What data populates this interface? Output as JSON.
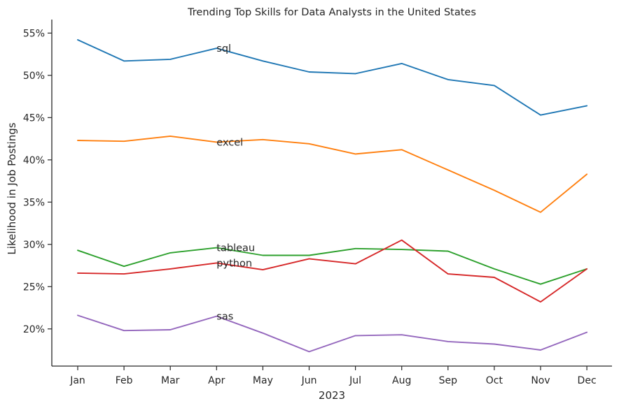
{
  "chart_data": {
    "type": "line",
    "title": "Trending Top Skills for Data Analysts in the United States",
    "xlabel": "2023",
    "ylabel": "Likelihood in Job Postings",
    "categories": [
      "Jan",
      "Feb",
      "Mar",
      "Apr",
      "May",
      "Jun",
      "Jul",
      "Aug",
      "Sep",
      "Oct",
      "Nov",
      "Dec"
    ],
    "y_ticks": [
      20,
      25,
      30,
      35,
      40,
      45,
      50,
      55
    ],
    "y_tick_labels": [
      "20%",
      "25%",
      "30%",
      "35%",
      "40%",
      "45%",
      "50%",
      "55%"
    ],
    "ylim": [
      15.6,
      56.6
    ],
    "grid": false,
    "legend": "none (series labeled inline near Apr)",
    "label_position": "Apr",
    "series": [
      {
        "name": "sql",
        "color": "#1f77b4",
        "values": [
          54.2,
          51.7,
          51.9,
          53.2,
          51.7,
          50.4,
          50.2,
          51.4,
          49.5,
          48.8,
          45.3,
          46.4
        ]
      },
      {
        "name": "excel",
        "color": "#ff7f0e",
        "values": [
          42.3,
          42.2,
          42.8,
          42.1,
          42.4,
          41.9,
          40.7,
          41.2,
          38.8,
          36.4,
          33.8,
          38.3
        ]
      },
      {
        "name": "tableau",
        "color": "#2ca02c",
        "values": [
          29.3,
          27.4,
          29.0,
          29.6,
          28.7,
          28.7,
          29.5,
          29.4,
          29.2,
          27.1,
          25.3,
          27.1
        ]
      },
      {
        "name": "python",
        "color": "#d62728",
        "values": [
          26.6,
          26.5,
          27.1,
          27.8,
          27.0,
          28.3,
          27.7,
          30.5,
          26.5,
          26.1,
          23.2,
          27.1
        ]
      },
      {
        "name": "sas",
        "color": "#9467bd",
        "values": [
          21.6,
          19.8,
          19.9,
          21.5,
          19.5,
          17.3,
          19.2,
          19.3,
          18.5,
          18.2,
          17.5,
          19.6
        ]
      }
    ]
  }
}
